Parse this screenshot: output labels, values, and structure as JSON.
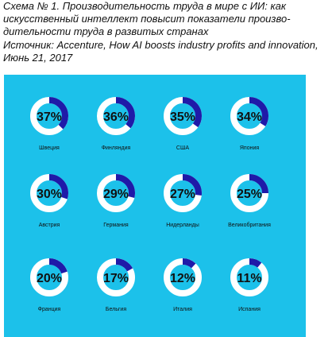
{
  "header": {
    "line1": "Схема № 1. Производительность труда в мире с ИИ: как",
    "line2": "искусственный интеллект повысит показатели произво-",
    "line3": "дительности труда в развитых странах",
    "line4": "Источник: Accenture, How AI boosts industry profits and innovation,",
    "line5": "Июнь 21, 2017"
  },
  "colors": {
    "panel_background": "#1cc1ea",
    "ring_track": "#ffffff",
    "ring_fill": "#1f1aa8",
    "value_text": "#111111",
    "label_text": "#111111"
  },
  "chart_data": {
    "type": "donut",
    "title": "Схема № 1. Производительность труда в мире с ИИ: как искусственный интеллект повысит показатели производительности труда в развитых странах",
    "source": "Источник: Accenture, How AI boosts industry profits and innovation, Июнь 21, 2017",
    "unit": "%",
    "categories": [
      "Швеция",
      "Финляндия",
      "США",
      "Япония",
      "Австрия",
      "Германия",
      "Нидерланды",
      "Великобритания",
      "Франция",
      "Бельгия",
      "Италия",
      "Испания"
    ],
    "values": [
      37,
      36,
      35,
      34,
      30,
      29,
      27,
      25,
      20,
      17,
      12,
      11
    ],
    "value_labels": [
      "37%",
      "36%",
      "35%",
      "34%",
      "30%",
      "29%",
      "27%",
      "25%",
      "20%",
      "17%",
      "12%",
      "11%"
    ]
  }
}
